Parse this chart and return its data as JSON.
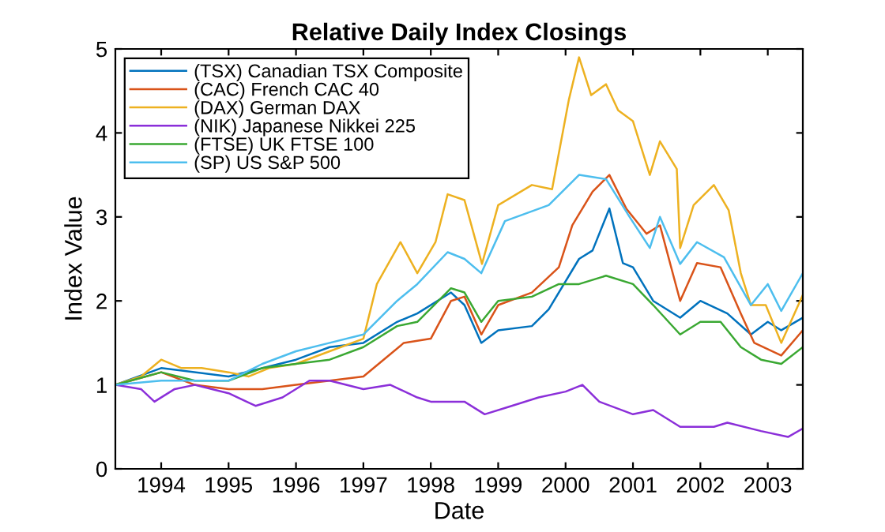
{
  "chart_data": {
    "type": "line",
    "title": "Relative Daily Index Closings",
    "xlabel": "Date",
    "ylabel": "Index Value",
    "xlim": [
      1993.32,
      2003.52
    ],
    "xticks": [
      1994,
      1995,
      1996,
      1997,
      1998,
      1999,
      2000,
      2001,
      2002,
      2003
    ],
    "ylim": [
      0,
      5
    ],
    "yticks": [
      0,
      1,
      2,
      3,
      4,
      5
    ],
    "grid": false,
    "legend": "top left",
    "series": [
      {
        "name": "(TSX) Canadian TSX Composite",
        "color": "#0072bd",
        "x": [
          1993.32,
          1994.0,
          1995.0,
          1996.0,
          1996.5,
          1997.0,
          1997.5,
          1997.8,
          1998.3,
          1998.5,
          1998.75,
          1999.0,
          1999.5,
          1999.75,
          2000.2,
          2000.4,
          2000.65,
          2000.85,
          2001.0,
          2001.3,
          2001.7,
          2002.0,
          2002.4,
          2002.75,
          2003.0,
          2003.2,
          2003.52
        ],
        "values": [
          1.0,
          1.2,
          1.1,
          1.3,
          1.45,
          1.5,
          1.75,
          1.85,
          2.1,
          1.95,
          1.5,
          1.65,
          1.7,
          1.9,
          2.5,
          2.6,
          3.1,
          2.45,
          2.4,
          2.0,
          1.8,
          2.0,
          1.85,
          1.6,
          1.75,
          1.65,
          1.8
        ]
      },
      {
        "name": "(CAC) French CAC 40",
        "color": "#d95319",
        "x": [
          1993.32,
          1994.0,
          1994.5,
          1995.0,
          1995.5,
          1996.0,
          1996.5,
          1997.0,
          1997.3,
          1997.6,
          1998.0,
          1998.3,
          1998.5,
          1998.75,
          1999.0,
          1999.5,
          1999.9,
          2000.1,
          2000.4,
          2000.65,
          2000.9,
          2001.2,
          2001.4,
          2001.7,
          2001.95,
          2002.3,
          2002.6,
          2002.8,
          2003.2,
          2003.52
        ],
        "values": [
          1.0,
          1.15,
          1.0,
          0.95,
          0.95,
          1.0,
          1.05,
          1.1,
          1.3,
          1.5,
          1.55,
          2.0,
          2.05,
          1.6,
          1.95,
          2.1,
          2.4,
          2.9,
          3.3,
          3.5,
          3.1,
          2.8,
          2.9,
          2.0,
          2.45,
          2.4,
          1.85,
          1.5,
          1.35,
          1.65
        ]
      },
      {
        "name": "(DAX) German DAX",
        "color": "#edb120",
        "x": [
          1993.32,
          1993.7,
          1994.0,
          1994.3,
          1994.6,
          1995.0,
          1995.3,
          1995.6,
          1996.0,
          1996.5,
          1997.0,
          1997.2,
          1997.55,
          1997.8,
          1998.07,
          1998.25,
          1998.5,
          1998.76,
          1999.0,
          1999.5,
          1999.8,
          2000.05,
          2000.2,
          2000.38,
          2000.6,
          2000.78,
          2001.0,
          2001.25,
          2001.4,
          2001.65,
          2001.7,
          2001.9,
          2002.2,
          2002.42,
          2002.6,
          2002.75,
          2002.97,
          2003.2,
          2003.52
        ],
        "values": [
          1.0,
          1.1,
          1.3,
          1.2,
          1.2,
          1.15,
          1.1,
          1.2,
          1.25,
          1.4,
          1.55,
          2.2,
          2.7,
          2.33,
          2.7,
          3.27,
          3.2,
          2.44,
          3.14,
          3.38,
          3.33,
          4.4,
          4.9,
          4.45,
          4.58,
          4.27,
          4.14,
          3.5,
          3.9,
          3.57,
          2.63,
          3.14,
          3.38,
          3.08,
          2.33,
          1.95,
          1.95,
          1.5,
          2.07
        ]
      },
      {
        "name": "(NIK) Japanese Nikkei 225",
        "color": "#8b2fd9",
        "x": [
          1993.32,
          1993.7,
          1993.9,
          1994.2,
          1994.5,
          1995.0,
          1995.4,
          1995.8,
          1996.2,
          1996.5,
          1997.0,
          1997.4,
          1997.8,
          1998.0,
          1998.5,
          1998.8,
          1999.2,
          1999.6,
          2000.0,
          2000.25,
          2000.5,
          2001.0,
          2001.3,
          2001.7,
          2002.2,
          2002.4,
          2002.9,
          2003.3,
          2003.52
        ],
        "values": [
          1.0,
          0.95,
          0.8,
          0.95,
          1.0,
          0.9,
          0.75,
          0.85,
          1.05,
          1.05,
          0.95,
          1.0,
          0.85,
          0.8,
          0.8,
          0.65,
          0.75,
          0.85,
          0.92,
          1.0,
          0.8,
          0.65,
          0.7,
          0.5,
          0.5,
          0.55,
          0.45,
          0.38,
          0.48
        ]
      },
      {
        "name": "(FTSE) UK FTSE 100",
        "color": "#3aa832",
        "x": [
          1993.32,
          1994.0,
          1994.5,
          1995.0,
          1995.5,
          1996.0,
          1996.5,
          1997.0,
          1997.5,
          1997.8,
          1998.3,
          1998.5,
          1998.75,
          1999.0,
          1999.5,
          1999.9,
          2000.2,
          2000.6,
          2001.0,
          2001.3,
          2001.7,
          2002.0,
          2002.3,
          2002.6,
          2002.9,
          2003.2,
          2003.52
        ],
        "values": [
          1.0,
          1.15,
          1.05,
          1.05,
          1.2,
          1.25,
          1.3,
          1.45,
          1.7,
          1.75,
          2.15,
          2.1,
          1.75,
          2.0,
          2.05,
          2.2,
          2.2,
          2.3,
          2.2,
          1.95,
          1.6,
          1.75,
          1.75,
          1.45,
          1.3,
          1.25,
          1.45
        ]
      },
      {
        "name": "(SP) US S&P 500",
        "color": "#4dbeee",
        "x": [
          1993.32,
          1994.0,
          1995.0,
          1995.5,
          1996.0,
          1996.5,
          1997.0,
          1997.5,
          1997.8,
          1998.25,
          1998.5,
          1998.75,
          1999.1,
          1999.75,
          2000.2,
          2000.6,
          2000.95,
          2001.25,
          2001.4,
          2001.7,
          2001.95,
          2002.35,
          2002.75,
          2003.0,
          2003.2,
          2003.52
        ],
        "values": [
          1.0,
          1.05,
          1.05,
          1.25,
          1.4,
          1.5,
          1.6,
          2.0,
          2.2,
          2.58,
          2.5,
          2.33,
          2.95,
          3.14,
          3.5,
          3.45,
          3.0,
          2.63,
          3.0,
          2.44,
          2.7,
          2.52,
          1.95,
          2.2,
          1.88,
          2.33
        ]
      }
    ]
  }
}
